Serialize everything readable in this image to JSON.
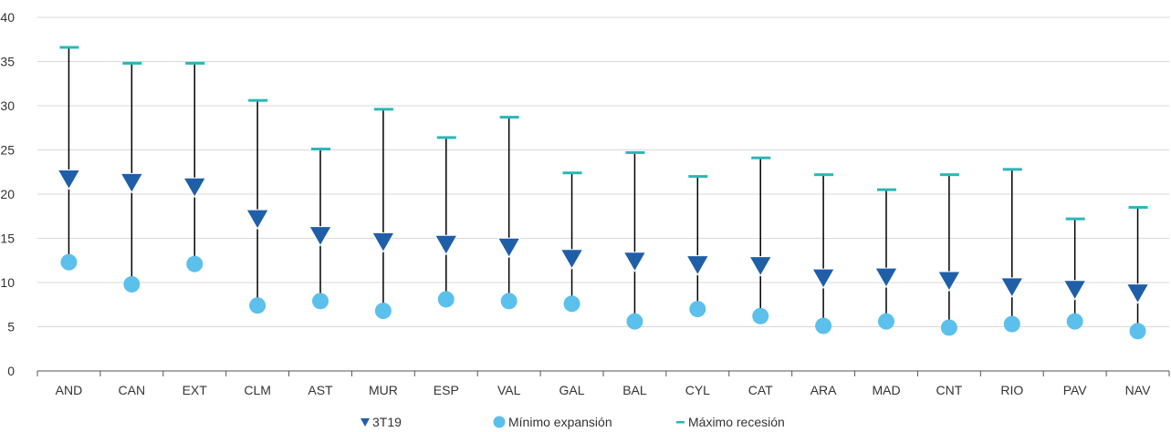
{
  "chart_data": {
    "type": "scatter",
    "categories": [
      "AND",
      "CAN",
      "EXT",
      "CLM",
      "AST",
      "MUR",
      "ESP",
      "VAL",
      "GAL",
      "BAL",
      "CYL",
      "CAT",
      "ARA",
      "MAD",
      "CNT",
      "RIO",
      "PAV",
      "NAV"
    ],
    "series": [
      {
        "name": "3T19",
        "marker": "triangle-down",
        "color": "#1f5fa8",
        "values": [
          21.7,
          21.3,
          20.8,
          17.2,
          15.3,
          14.6,
          14.3,
          14.0,
          12.7,
          12.4,
          12.0,
          11.9,
          10.5,
          10.6,
          10.2,
          9.5,
          9.2,
          8.8
        ]
      },
      {
        "name": "Mínimo expansión",
        "marker": "circle",
        "color": "#5bc0eb",
        "values": [
          12.3,
          9.8,
          12.1,
          7.4,
          7.9,
          6.8,
          8.1,
          7.9,
          7.6,
          5.6,
          7.0,
          6.2,
          5.1,
          5.6,
          4.9,
          5.3,
          5.6,
          4.5
        ]
      },
      {
        "name": "Máximo recesión",
        "marker": "dash",
        "color": "#2ab7b7",
        "values": [
          36.6,
          34.8,
          34.8,
          30.6,
          25.1,
          29.6,
          26.4,
          28.7,
          22.4,
          24.7,
          22.0,
          24.1,
          22.2,
          20.5,
          22.2,
          22.8,
          17.2,
          18.5
        ]
      }
    ],
    "ylim": [
      0,
      40
    ],
    "yticks": [
      "0",
      "5",
      "10",
      "15",
      "20",
      "25",
      "30",
      "35",
      "40"
    ],
    "grid": true,
    "legend_position": "bottom",
    "range_line_color": "#000000",
    "grid_color": "#d9d9d9",
    "axis_color": "#555555"
  },
  "legend": [
    {
      "label": "3T19",
      "marker": "triangle-down",
      "color": "#1f5fa8"
    },
    {
      "label": "Mínimo expansión",
      "marker": "circle",
      "color": "#5bc0eb"
    },
    {
      "label": "Máximo recesión",
      "marker": "dash",
      "color": "#2ab7b7"
    }
  ]
}
